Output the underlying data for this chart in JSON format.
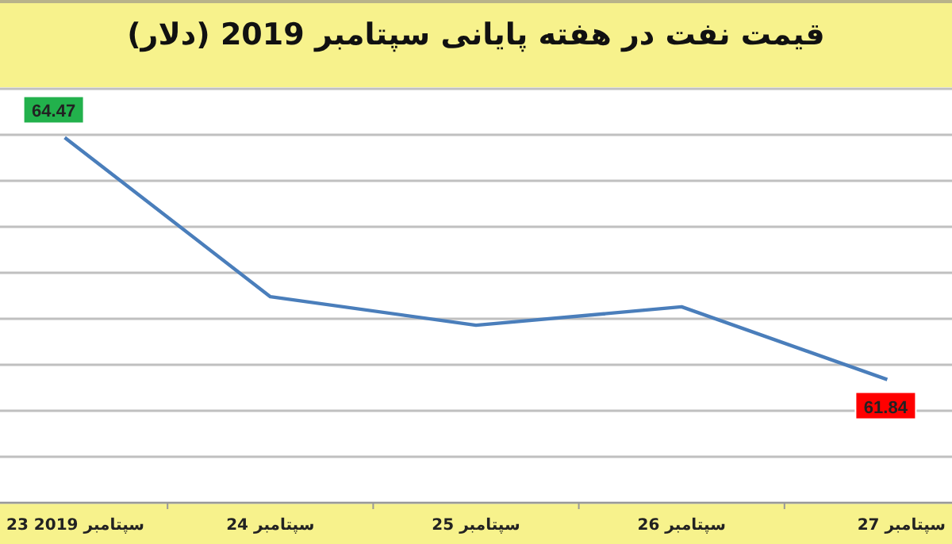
{
  "chart_data": {
    "type": "line",
    "title": "قیمت نفت در هفته پایانی سپتامبر 2019 (دلار)",
    "categories": [
      "23 سپتامبر 2019",
      "24 سپتامبر",
      "25 سپتامبر",
      "26 سپتامبر",
      "27 سپتامبر"
    ],
    "series": [
      {
        "color": "#4a7ebb",
        "values": [
          64.47,
          62.74,
          62.43,
          62.63,
          61.84
        ],
        "value_labels": [
          "64.47",
          null,
          null,
          null,
          "61.84"
        ]
      }
    ],
    "ylim": [
      60.5,
      65
    ],
    "yticks": [
      {
        "value": 60.5,
        "label": null
      },
      {
        "value": 61,
        "label": null
      },
      {
        "value": 61.5,
        "label": null
      },
      {
        "value": 62,
        "label": null
      },
      {
        "value": 62.5,
        "label": null
      },
      {
        "value": 63,
        "label": null
      },
      {
        "value": 63.5,
        "label": null
      },
      {
        "value": 64,
        "label": null
      },
      {
        "value": 64.5,
        "label": null
      },
      {
        "value": 65,
        "label": null
      }
    ],
    "tick_labels": "x",
    "grid": "y",
    "marker": "none",
    "line_style": "solid"
  }
}
